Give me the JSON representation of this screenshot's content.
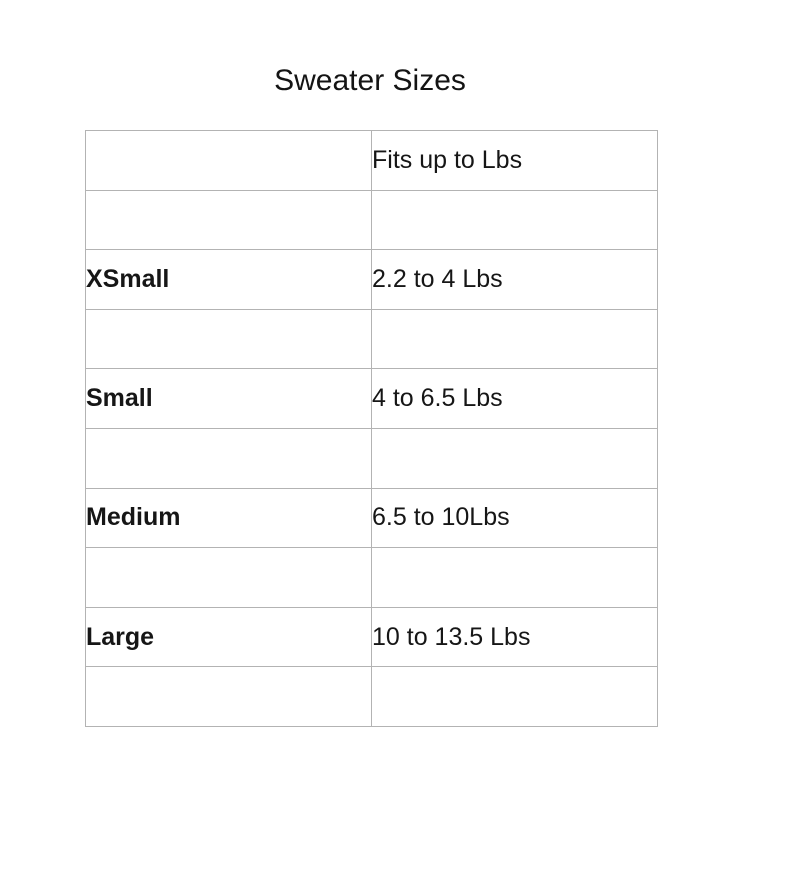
{
  "title": "Sweater Sizes",
  "table": {
    "header": {
      "size_label": "",
      "fits_label": "Fits up to Lbs"
    },
    "rows": [
      {
        "size": "XSmall",
        "fits": "2.2 to 4 Lbs"
      },
      {
        "size": "Small",
        "fits": "4 to 6.5 Lbs"
      },
      {
        "size": "Medium",
        "fits": "6.5 to 10Lbs"
      },
      {
        "size": "Large",
        "fits": "10 to 13.5 Lbs"
      }
    ]
  },
  "colors": {
    "band_pink": "#eca4e2",
    "border_light": "#b3b3b3",
    "border_divider": "#757575",
    "text": "#161616",
    "background": "#ffffff"
  },
  "chart_data": {
    "type": "table",
    "title": "Sweater Sizes",
    "columns": [
      "",
      "Fits up to Lbs"
    ],
    "rows": [
      [
        "XSmall",
        "2.2 to 4 Lbs"
      ],
      [
        "Small",
        "4 to 6.5 Lbs"
      ],
      [
        "Medium",
        "6.5 to 10Lbs"
      ],
      [
        "Large",
        "10 to 13.5 Lbs"
      ]
    ],
    "layout_hints": {
      "band_rows_color": "#eca4e2",
      "band_rows_in_column": "Fits up to Lbs",
      "alternating_pink_spacer_rows": true,
      "grid": true
    }
  }
}
